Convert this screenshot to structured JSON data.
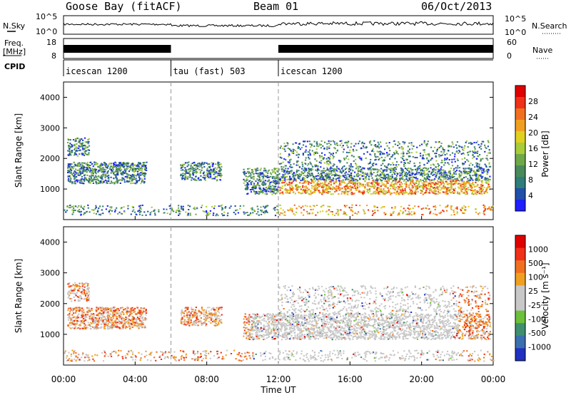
{
  "header": {
    "station": "Goose Bay (fitACF)",
    "beam": "Beam 01",
    "date": "06/Oct/2013"
  },
  "left_labels": {
    "nsky": "N.Sky",
    "freq_line1": "Freq.",
    "freq_line2": "[MHz]",
    "cpid": "CPID"
  },
  "right_labels": {
    "nsearch": "N.Search",
    "nave": "Nave"
  },
  "noise_panel": {
    "left_ticks": [
      "10^5",
      "10^0"
    ],
    "right_ticks": [
      "10^5",
      "10^0"
    ]
  },
  "freq_panel": {
    "left_ticks": [
      "18",
      "8"
    ],
    "right_ticks": [
      "60",
      "0"
    ]
  },
  "cpid_panel": {
    "segments": [
      {
        "label": "icescan 1200",
        "start_hour": 0,
        "end_hour": 6
      },
      {
        "label": "tau (fast) 503",
        "start_hour": 6,
        "end_hour": 12
      },
      {
        "label": "icescan 1200",
        "start_hour": 12,
        "end_hour": 24
      }
    ]
  },
  "chart_data": [
    {
      "type": "heatmap",
      "name": "power",
      "ylabel": "Slant Range [km]",
      "ytick_labels": [
        "1000",
        "2000",
        "3000",
        "4000"
      ],
      "xlim_hours": [
        0,
        24
      ],
      "colorbar": {
        "label": "Power [dB]",
        "tick_labels": [
          "4",
          "8",
          "12",
          "16",
          "20",
          "24",
          "28"
        ],
        "colors": [
          "#1f1fff",
          "#1f4fa8",
          "#2e7d78",
          "#4a8a5a",
          "#6fa848",
          "#a8cc3a",
          "#e0d020",
          "#f0a020",
          "#f07020",
          "#f03018",
          "#e00000"
        ]
      }
    },
    {
      "type": "heatmap",
      "name": "velocity",
      "ylabel": "Slant Range [km]",
      "ytick_labels": [
        "1000",
        "2000",
        "3000",
        "4000"
      ],
      "xlim_hours": [
        0,
        24
      ],
      "colorbar": {
        "label": "Velocity [m s⁻¹]",
        "tick_labels": [
          "1000",
          "500",
          "100",
          "25",
          "-25",
          "-100",
          "-500",
          "-1000"
        ],
        "colors": [
          "#2030c0",
          "#3b6fb0",
          "#3f8f6f",
          "#6cc03a",
          "#c8c8c8",
          "#c8c8c8",
          "#f0a020",
          "#f07020",
          "#f03018",
          "#e00000"
        ]
      }
    }
  ],
  "xaxis": {
    "tick_labels": [
      "00:00",
      "04:00",
      "08:00",
      "12:00",
      "16:00",
      "20:00",
      "00:00"
    ],
    "label": "Time UT"
  }
}
